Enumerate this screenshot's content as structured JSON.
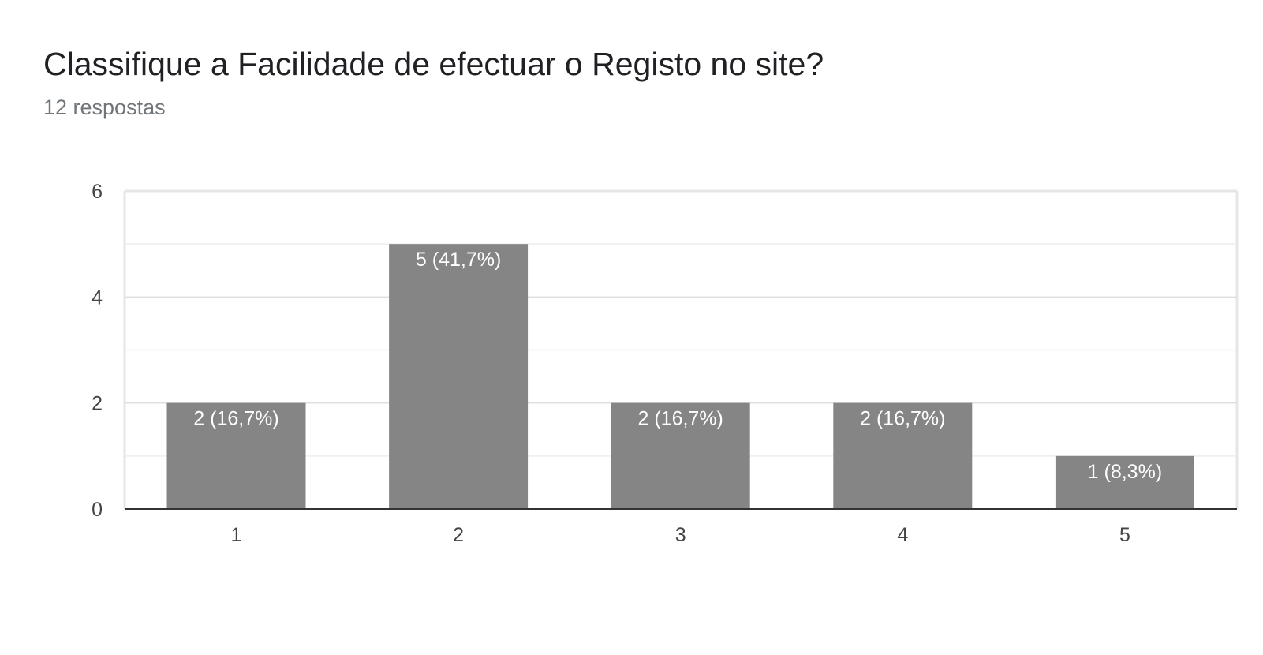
{
  "chart_data": {
    "type": "bar",
    "title": "Classifique a Facilidade de efectuar o Registo no site?",
    "subtitle": "12 respostas",
    "categories": [
      "1",
      "2",
      "3",
      "4",
      "5"
    ],
    "values": [
      2,
      5,
      2,
      2,
      1
    ],
    "data_labels": [
      "2 (16,7%)",
      "5 (41,7%)",
      "2 (16,7%)",
      "2 (16,7%)",
      "1 (8,3%)"
    ],
    "y_ticks": [
      "0",
      "2",
      "4",
      "6"
    ],
    "ylim": [
      0,
      6
    ],
    "grid": true,
    "bar_color": "#858585"
  }
}
